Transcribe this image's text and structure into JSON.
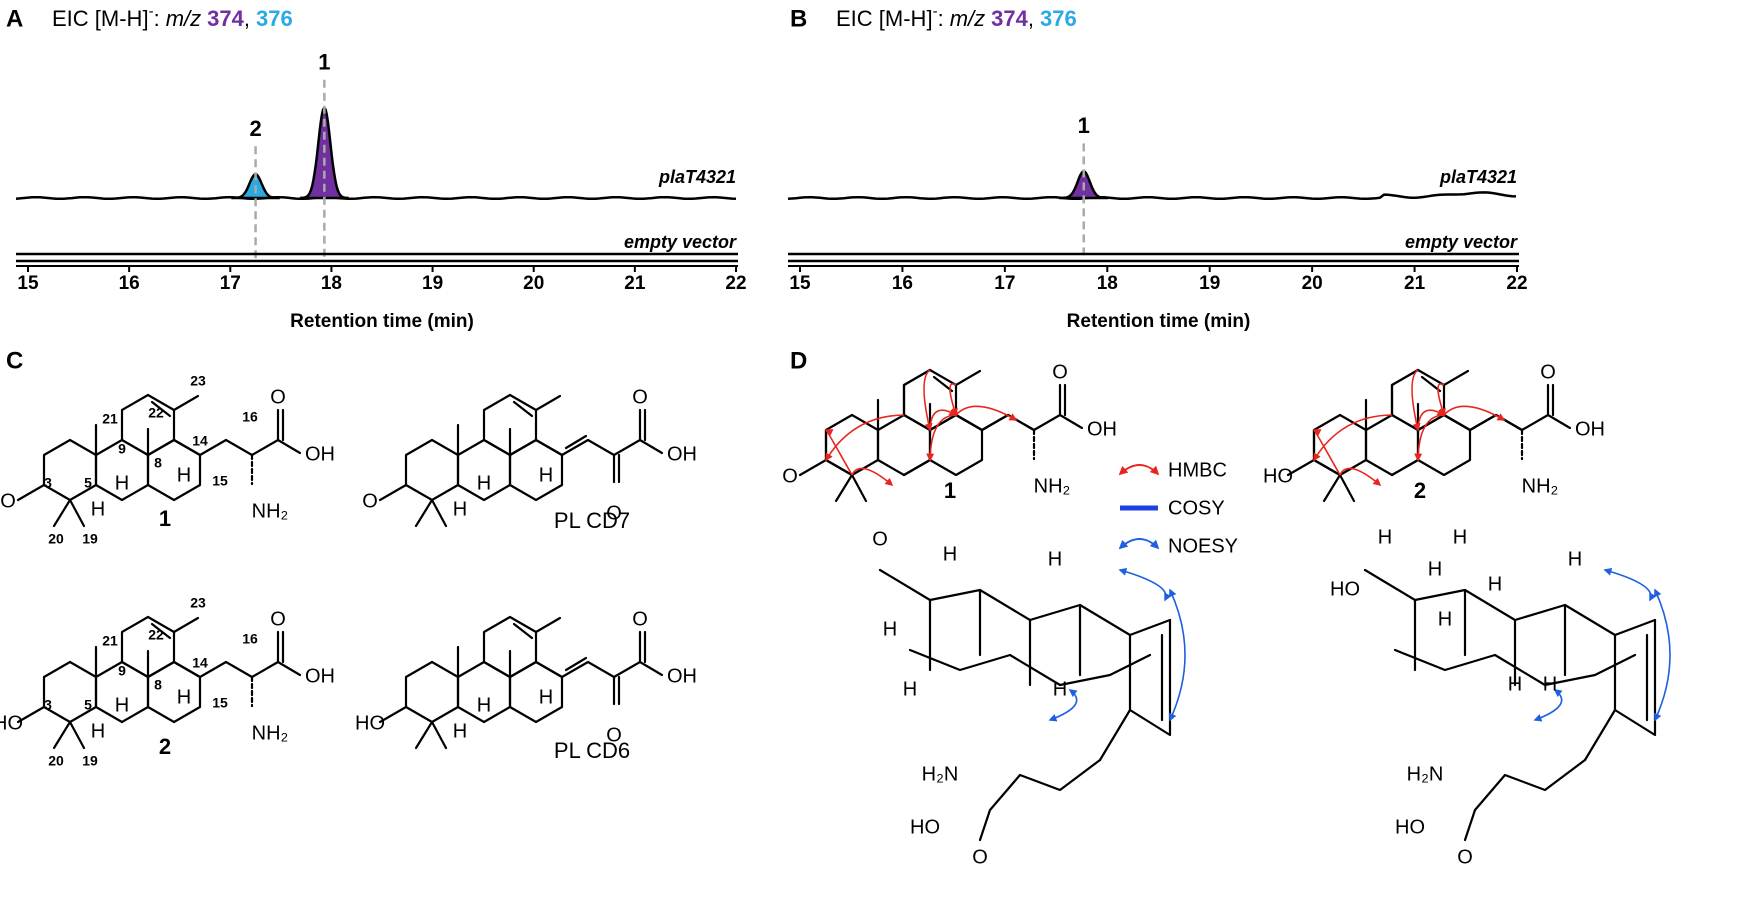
{
  "panels": [
    {
      "letter": "A",
      "title": {
        "text": "EIC [M-H]",
        "charge": "-",
        "colon": ":",
        "mz": "m/z",
        "ion_1": "374",
        "separator": ",",
        "ion_2": "376"
      },
      "xlabel": "Retention time (min)",
      "xlim": [
        15,
        22
      ],
      "xticks": [
        15,
        16,
        17,
        18,
        19,
        20,
        21,
        22
      ],
      "traces": [
        "plaT4321",
        "empty vector"
      ],
      "peaks": [
        {
          "label": "2",
          "rt": 17.25,
          "height": 0.25,
          "color": "#29abe2"
        },
        {
          "label": "1",
          "rt": 17.93,
          "height": 0.95,
          "color": "#7030a0"
        }
      ]
    },
    {
      "letter": "B",
      "title": {
        "text": "EIC [M-H]",
        "charge": "-",
        "colon": ":",
        "mz": "m/z",
        "ion_1": "374",
        "separator": ",",
        "ion_2": "376"
      },
      "xlabel": "Retention time (min)",
      "xlim": [
        15,
        22
      ],
      "xticks": [
        15,
        16,
        17,
        18,
        19,
        20,
        21,
        22
      ],
      "traces": [
        "plaT4321",
        "empty vector"
      ],
      "peaks": [
        {
          "label": "1",
          "rt": 17.77,
          "height": 0.28,
          "color": "#7030a0"
        }
      ]
    }
  ],
  "structures": {
    "letter": "C",
    "compounds": [
      {
        "name": "1",
        "labels": [
          "23",
          "21",
          "22",
          "9",
          "14",
          "16",
          "8",
          "3",
          "5",
          "15",
          "20",
          "19",
          "H",
          "H",
          "H",
          "O",
          "O",
          "OH",
          "NH₂"
        ]
      },
      {
        "name": "PL CD7",
        "labels": [
          "H",
          "H",
          "H",
          "O",
          "O",
          "O",
          "OH"
        ]
      },
      {
        "name": "2",
        "labels": [
          "23",
          "21",
          "22",
          "9",
          "14",
          "16",
          "8",
          "3",
          "5",
          "15",
          "20",
          "19",
          "H",
          "H",
          "H",
          "HO",
          "O",
          "OH",
          "NH₂"
        ]
      },
      {
        "name": "PL CD6",
        "labels": [
          "H",
          "H",
          "H",
          "HO",
          "O",
          "O",
          "OH"
        ]
      }
    ]
  },
  "nmr": {
    "letter": "D",
    "legend": [
      "HMBC",
      "COSY",
      "NOESY"
    ],
    "compounds": [
      {
        "name": "1",
        "labels": [
          "O",
          "O",
          "OH",
          "NH₂"
        ],
        "conformer_labels": [
          "O",
          "H",
          "H",
          "H",
          "H",
          "H",
          "H₂N",
          "HO",
          "O"
        ]
      },
      {
        "name": "2",
        "labels": [
          "HO",
          "O",
          "OH",
          "NH₂"
        ],
        "conformer_labels": [
          "H",
          "H",
          "H",
          "HO",
          "H",
          "H",
          "H",
          "H",
          "H",
          "H₂N",
          "HO",
          "O"
        ]
      }
    ]
  }
}
